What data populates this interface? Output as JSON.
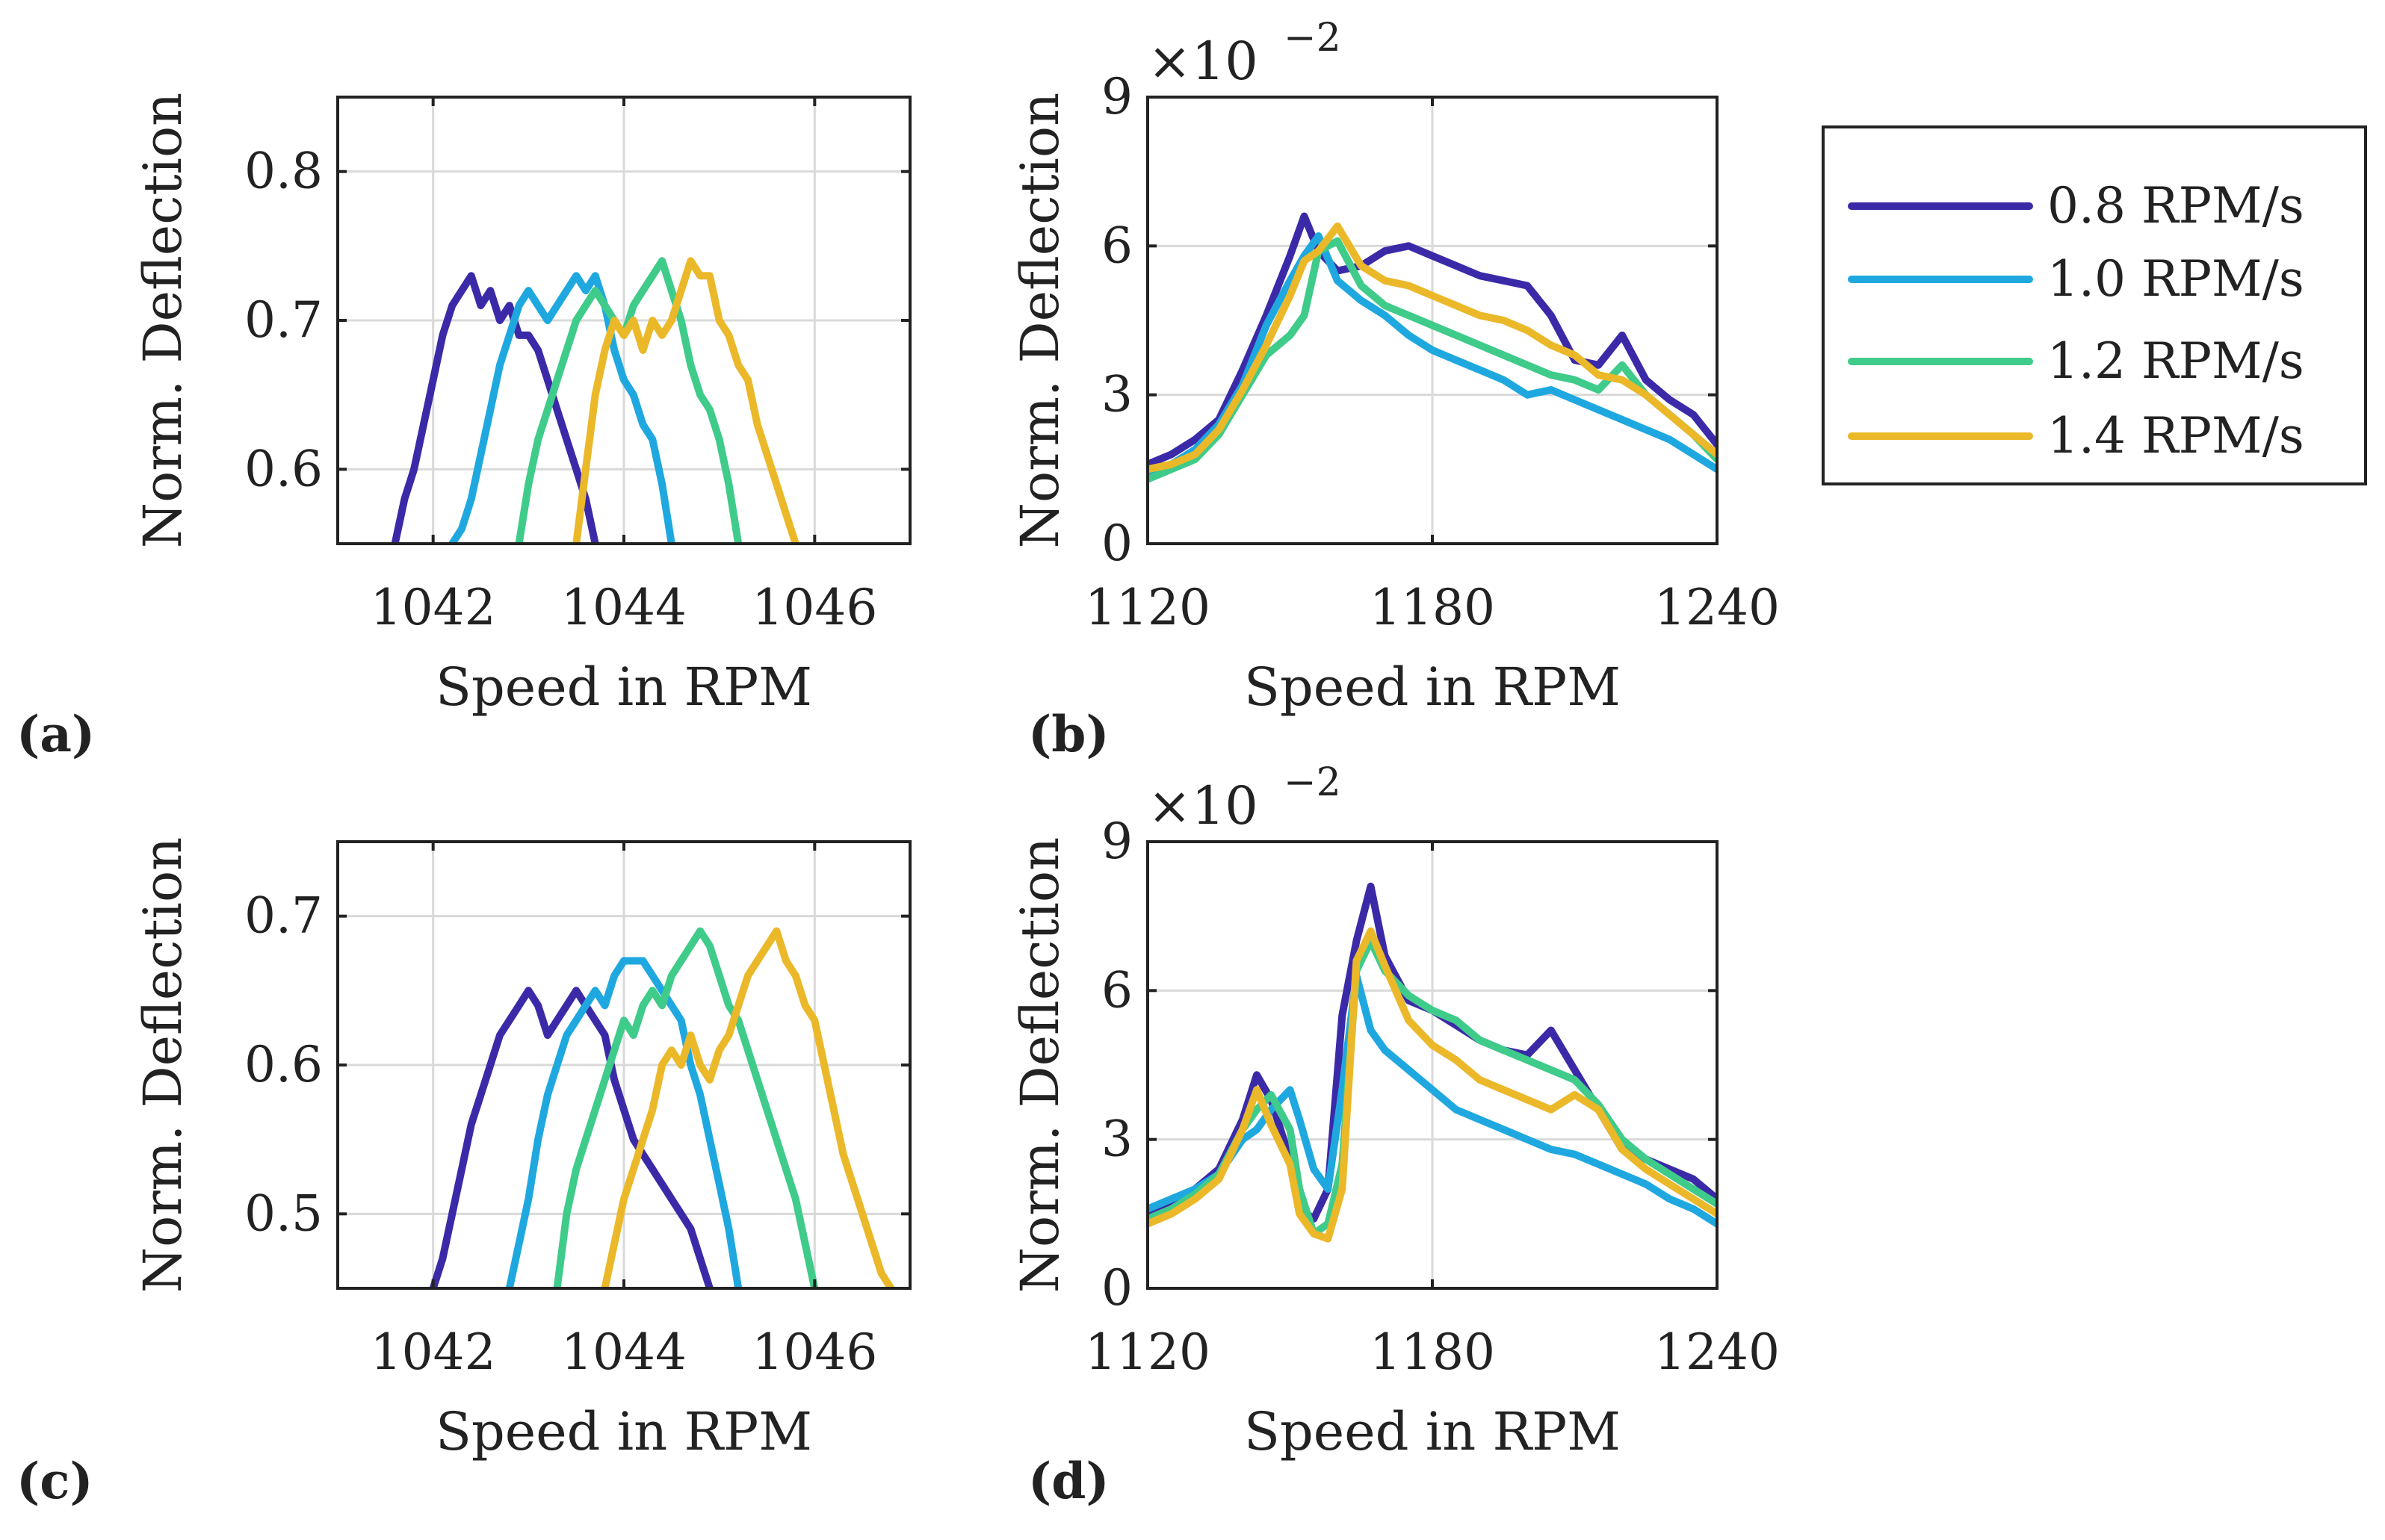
{
  "colors": {
    "s0": "#3b2aa8",
    "s1": "#1fa8df",
    "s2": "#3fcb8a",
    "s3": "#ebb829"
  },
  "legend": {
    "entries": [
      "0.8 RPM/s",
      "1.0 RPM/s",
      "1.2 RPM/s",
      "1.4 RPM/s"
    ]
  },
  "chart_data": [
    {
      "id": "a",
      "type": "line",
      "panel_label": "(a)",
      "xlabel": "Speed  in RPM",
      "ylabel": "Norm. Deflection",
      "xlim": [
        1041,
        1047
      ],
      "ylim": [
        0.55,
        0.85
      ],
      "xticks": [
        1042,
        1044,
        1046
      ],
      "xtick_labels": [
        "1042",
        "1044",
        "1046"
      ],
      "yticks": [
        0.6,
        0.7,
        0.8
      ],
      "ytick_labels": [
        "0.6",
        "0.7",
        "0.8"
      ],
      "series": [
        {
          "name": "0.8 RPM/s",
          "x": [
            1041.6,
            1041.7,
            1041.8,
            1041.9,
            1042.0,
            1042.1,
            1042.2,
            1042.3,
            1042.4,
            1042.5,
            1042.6,
            1042.7,
            1042.8,
            1042.9,
            1043.0,
            1043.1,
            1043.2,
            1043.3,
            1043.4,
            1043.5,
            1043.6,
            1043.7
          ],
          "y": [
            0.55,
            0.58,
            0.6,
            0.63,
            0.66,
            0.69,
            0.71,
            0.72,
            0.73,
            0.71,
            0.72,
            0.7,
            0.71,
            0.69,
            0.69,
            0.68,
            0.66,
            0.64,
            0.62,
            0.6,
            0.58,
            0.55
          ]
        },
        {
          "name": "1.0 RPM/s",
          "x": [
            1042.2,
            1042.3,
            1042.4,
            1042.5,
            1042.6,
            1042.7,
            1042.8,
            1042.9,
            1043.0,
            1043.1,
            1043.2,
            1043.3,
            1043.4,
            1043.5,
            1043.6,
            1043.7,
            1043.8,
            1043.9,
            1044.0,
            1044.1,
            1044.2,
            1044.3,
            1044.4,
            1044.5
          ],
          "y": [
            0.55,
            0.56,
            0.58,
            0.61,
            0.64,
            0.67,
            0.69,
            0.71,
            0.72,
            0.71,
            0.7,
            0.71,
            0.72,
            0.73,
            0.72,
            0.73,
            0.71,
            0.68,
            0.66,
            0.65,
            0.63,
            0.62,
            0.59,
            0.55
          ]
        },
        {
          "name": "1.2 RPM/s",
          "x": [
            1042.9,
            1043.0,
            1043.1,
            1043.2,
            1043.3,
            1043.4,
            1043.5,
            1043.6,
            1043.7,
            1043.8,
            1043.9,
            1044.0,
            1044.1,
            1044.2,
            1044.3,
            1044.4,
            1044.5,
            1044.6,
            1044.7,
            1044.8,
            1044.9,
            1045.0,
            1045.1,
            1045.2
          ],
          "y": [
            0.55,
            0.59,
            0.62,
            0.64,
            0.66,
            0.68,
            0.7,
            0.71,
            0.72,
            0.71,
            0.7,
            0.69,
            0.71,
            0.72,
            0.73,
            0.74,
            0.72,
            0.7,
            0.67,
            0.65,
            0.64,
            0.62,
            0.59,
            0.55
          ]
        },
        {
          "name": "1.4 RPM/s",
          "x": [
            1043.5,
            1043.6,
            1043.7,
            1043.8,
            1043.9,
            1044.0,
            1044.1,
            1044.2,
            1044.3,
            1044.4,
            1044.5,
            1044.6,
            1044.7,
            1044.8,
            1044.9,
            1045.0,
            1045.1,
            1045.2,
            1045.3,
            1045.4,
            1045.5,
            1045.6,
            1045.7,
            1045.8
          ],
          "y": [
            0.55,
            0.6,
            0.65,
            0.68,
            0.7,
            0.69,
            0.7,
            0.68,
            0.7,
            0.69,
            0.7,
            0.72,
            0.74,
            0.73,
            0.73,
            0.7,
            0.69,
            0.67,
            0.66,
            0.63,
            0.61,
            0.59,
            0.57,
            0.55
          ]
        }
      ]
    },
    {
      "id": "b",
      "type": "line",
      "panel_label": "(b)",
      "xlabel": "Speed  in RPM",
      "ylabel": "Norm. Deflection",
      "exponent_label": "×10",
      "exponent_power": "−2",
      "xlim": [
        1120,
        1240
      ],
      "ylim": [
        0,
        9
      ],
      "xticks": [
        1120,
        1180,
        1240
      ],
      "xtick_labels": [
        "1120",
        "1180",
        "1240"
      ],
      "yticks": [
        0,
        3,
        6,
        9
      ],
      "ytick_labels": [
        "0",
        "3",
        "6",
        "9"
      ],
      "series": [
        {
          "name": "0.8 RPM/s",
          "x": [
            1120,
            1125,
            1130,
            1135,
            1140,
            1145,
            1150,
            1153,
            1156,
            1160,
            1165,
            1170,
            1175,
            1180,
            1185,
            1190,
            1195,
            1200,
            1205,
            1210,
            1215,
            1220,
            1225,
            1230,
            1235,
            1240
          ],
          "y": [
            1.6,
            1.8,
            2.1,
            2.5,
            3.5,
            4.6,
            5.8,
            6.6,
            5.9,
            5.5,
            5.6,
            5.9,
            6.0,
            5.8,
            5.6,
            5.4,
            5.3,
            5.2,
            4.6,
            3.7,
            3.6,
            4.2,
            3.3,
            2.9,
            2.6,
            2.0
          ]
        },
        {
          "name": "1.0 RPM/s",
          "x": [
            1120,
            1125,
            1130,
            1135,
            1140,
            1145,
            1150,
            1153,
            1156,
            1160,
            1165,
            1170,
            1175,
            1180,
            1185,
            1190,
            1195,
            1200,
            1205,
            1210,
            1215,
            1220,
            1225,
            1230,
            1235,
            1240
          ],
          "y": [
            1.4,
            1.6,
            1.9,
            2.4,
            3.2,
            4.4,
            5.3,
            5.8,
            6.2,
            5.3,
            4.9,
            4.6,
            4.2,
            3.9,
            3.7,
            3.5,
            3.3,
            3.0,
            3.1,
            2.9,
            2.7,
            2.5,
            2.3,
            2.1,
            1.8,
            1.5
          ]
        },
        {
          "name": "1.2 RPM/s",
          "x": [
            1120,
            1125,
            1130,
            1135,
            1140,
            1145,
            1150,
            1153,
            1156,
            1160,
            1165,
            1170,
            1175,
            1180,
            1185,
            1190,
            1195,
            1200,
            1205,
            1210,
            1215,
            1220,
            1225,
            1230,
            1235,
            1240
          ],
          "y": [
            1.3,
            1.5,
            1.7,
            2.2,
            3.0,
            3.8,
            4.2,
            4.6,
            5.9,
            6.1,
            5.2,
            4.8,
            4.6,
            4.4,
            4.2,
            4.0,
            3.8,
            3.6,
            3.4,
            3.3,
            3.1,
            3.6,
            3.0,
            2.6,
            2.2,
            1.7
          ]
        },
        {
          "name": "1.4 RPM/s",
          "x": [
            1120,
            1125,
            1130,
            1135,
            1140,
            1145,
            1150,
            1153,
            1156,
            1160,
            1165,
            1170,
            1175,
            1180,
            1185,
            1190,
            1195,
            1200,
            1205,
            1210,
            1215,
            1220,
            1225,
            1230,
            1235,
            1240
          ],
          "y": [
            1.5,
            1.6,
            1.8,
            2.3,
            3.1,
            4.0,
            5.0,
            5.7,
            5.9,
            6.4,
            5.6,
            5.3,
            5.2,
            5.0,
            4.8,
            4.6,
            4.5,
            4.3,
            4.0,
            3.8,
            3.4,
            3.3,
            3.0,
            2.6,
            2.2,
            1.8
          ]
        }
      ]
    },
    {
      "id": "c",
      "type": "line",
      "panel_label": "(c)",
      "xlabel": "Speed  in RPM",
      "ylabel": "Norm. Deflection",
      "xlim": [
        1041,
        1047
      ],
      "ylim": [
        0.45,
        0.75
      ],
      "xticks": [
        1042,
        1044,
        1046
      ],
      "xtick_labels": [
        "1042",
        "1044",
        "1046"
      ],
      "yticks": [
        0.5,
        0.6,
        0.7
      ],
      "ytick_labels": [
        "0.5",
        "0.6",
        "0.7"
      ],
      "series": [
        {
          "name": "0.8 RPM/s",
          "x": [
            1042.0,
            1042.1,
            1042.2,
            1042.3,
            1042.4,
            1042.5,
            1042.6,
            1042.7,
            1042.8,
            1042.9,
            1043.0,
            1043.1,
            1043.2,
            1043.3,
            1043.4,
            1043.5,
            1043.6,
            1043.7,
            1043.8,
            1043.9,
            1044.0,
            1044.1,
            1044.2,
            1044.3,
            1044.4,
            1044.5,
            1044.6,
            1044.7,
            1044.8,
            1044.9
          ],
          "y": [
            0.45,
            0.47,
            0.5,
            0.53,
            0.56,
            0.58,
            0.6,
            0.62,
            0.63,
            0.64,
            0.65,
            0.64,
            0.62,
            0.63,
            0.64,
            0.65,
            0.64,
            0.63,
            0.62,
            0.59,
            0.57,
            0.55,
            0.54,
            0.53,
            0.52,
            0.51,
            0.5,
            0.49,
            0.47,
            0.45
          ]
        },
        {
          "name": "1.0 RPM/s",
          "x": [
            1042.8,
            1042.9,
            1043.0,
            1043.1,
            1043.2,
            1043.3,
            1043.4,
            1043.5,
            1043.6,
            1043.7,
            1043.8,
            1043.9,
            1044.0,
            1044.1,
            1044.2,
            1044.3,
            1044.4,
            1044.5,
            1044.6,
            1044.7,
            1044.8,
            1044.9,
            1045.0,
            1045.1,
            1045.2
          ],
          "y": [
            0.45,
            0.48,
            0.51,
            0.55,
            0.58,
            0.6,
            0.62,
            0.63,
            0.64,
            0.65,
            0.64,
            0.66,
            0.67,
            0.67,
            0.67,
            0.66,
            0.65,
            0.64,
            0.63,
            0.6,
            0.58,
            0.55,
            0.52,
            0.49,
            0.45
          ]
        },
        {
          "name": "1.2 RPM/s",
          "x": [
            1043.3,
            1043.4,
            1043.5,
            1043.6,
            1043.7,
            1043.8,
            1043.9,
            1044.0,
            1044.1,
            1044.2,
            1044.3,
            1044.4,
            1044.5,
            1044.6,
            1044.7,
            1044.8,
            1044.9,
            1045.0,
            1045.1,
            1045.2,
            1045.3,
            1045.4,
            1045.5,
            1045.6,
            1045.7,
            1045.8,
            1045.9,
            1046.0
          ],
          "y": [
            0.45,
            0.5,
            0.53,
            0.55,
            0.57,
            0.59,
            0.61,
            0.63,
            0.62,
            0.64,
            0.65,
            0.64,
            0.66,
            0.67,
            0.68,
            0.69,
            0.68,
            0.66,
            0.64,
            0.63,
            0.61,
            0.59,
            0.57,
            0.55,
            0.53,
            0.51,
            0.48,
            0.45
          ]
        },
        {
          "name": "1.4 RPM/s",
          "x": [
            1043.8,
            1043.9,
            1044.0,
            1044.1,
            1044.2,
            1044.3,
            1044.4,
            1044.5,
            1044.6,
            1044.7,
            1044.8,
            1044.9,
            1045.0,
            1045.1,
            1045.2,
            1045.3,
            1045.4,
            1045.5,
            1045.6,
            1045.7,
            1045.8,
            1045.9,
            1046.0,
            1046.1,
            1046.2,
            1046.3,
            1046.4,
            1046.5,
            1046.6,
            1046.7,
            1046.8
          ],
          "y": [
            0.45,
            0.48,
            0.51,
            0.53,
            0.55,
            0.57,
            0.6,
            0.61,
            0.6,
            0.62,
            0.6,
            0.59,
            0.61,
            0.62,
            0.64,
            0.66,
            0.67,
            0.68,
            0.69,
            0.67,
            0.66,
            0.64,
            0.63,
            0.6,
            0.57,
            0.54,
            0.52,
            0.5,
            0.48,
            0.46,
            0.45
          ]
        }
      ]
    },
    {
      "id": "d",
      "type": "line",
      "panel_label": "(d)",
      "xlabel": "Speed  in RPM",
      "ylabel": "Norm. Deflection",
      "exponent_label": "×10",
      "exponent_power": "−2",
      "xlim": [
        1120,
        1240
      ],
      "ylim": [
        0,
        9
      ],
      "xticks": [
        1120,
        1180,
        1240
      ],
      "xtick_labels": [
        "1120",
        "1180",
        "1240"
      ],
      "yticks": [
        0,
        3,
        6,
        9
      ],
      "ytick_labels": [
        "0",
        "3",
        "6",
        "9"
      ],
      "series": [
        {
          "name": "0.8 RPM/s",
          "x": [
            1120,
            1125,
            1130,
            1135,
            1140,
            1143,
            1146,
            1150,
            1152,
            1155,
            1158,
            1161,
            1164,
            1167,
            1170,
            1175,
            1180,
            1185,
            1190,
            1195,
            1200,
            1205,
            1210,
            1215,
            1220,
            1225,
            1230,
            1235,
            1240
          ],
          "y": [
            1.5,
            1.7,
            2.0,
            2.4,
            3.4,
            4.3,
            3.8,
            2.6,
            1.6,
            1.4,
            2.0,
            5.5,
            7.0,
            8.1,
            6.7,
            5.8,
            5.6,
            5.3,
            5.0,
            4.8,
            4.7,
            5.2,
            4.4,
            3.6,
            2.8,
            2.6,
            2.4,
            2.2,
            1.8
          ]
        },
        {
          "name": "1.0 RPM/s",
          "x": [
            1120,
            1125,
            1130,
            1135,
            1140,
            1143,
            1146,
            1150,
            1152,
            1155,
            1158,
            1161,
            1164,
            1167,
            1170,
            1175,
            1180,
            1185,
            1190,
            1195,
            1200,
            1205,
            1210,
            1215,
            1220,
            1225,
            1230,
            1235,
            1240
          ],
          "y": [
            1.6,
            1.8,
            2.0,
            2.3,
            3.0,
            3.2,
            3.6,
            4.0,
            3.4,
            2.4,
            2.0,
            4.0,
            6.3,
            5.2,
            4.8,
            4.4,
            4.0,
            3.6,
            3.4,
            3.2,
            3.0,
            2.8,
            2.7,
            2.5,
            2.3,
            2.1,
            1.8,
            1.6,
            1.3
          ]
        },
        {
          "name": "1.2 RPM/s",
          "x": [
            1120,
            1125,
            1130,
            1135,
            1140,
            1143,
            1146,
            1150,
            1152,
            1155,
            1158,
            1161,
            1164,
            1167,
            1170,
            1175,
            1180,
            1185,
            1190,
            1195,
            1200,
            1205,
            1210,
            1215,
            1220,
            1225,
            1230,
            1235,
            1240
          ],
          "y": [
            1.4,
            1.6,
            1.9,
            2.3,
            3.2,
            3.6,
            3.9,
            3.2,
            2.0,
            1.1,
            1.3,
            2.5,
            6.4,
            7.0,
            6.4,
            5.9,
            5.6,
            5.4,
            5.0,
            4.8,
            4.6,
            4.4,
            4.2,
            3.7,
            3.0,
            2.6,
            2.3,
            2.0,
            1.7
          ]
        },
        {
          "name": "1.4 RPM/s",
          "x": [
            1120,
            1125,
            1130,
            1135,
            1140,
            1143,
            1146,
            1150,
            1152,
            1155,
            1158,
            1161,
            1164,
            1167,
            1170,
            1175,
            1180,
            1185,
            1190,
            1195,
            1200,
            1205,
            1210,
            1215,
            1220,
            1225,
            1230,
            1235,
            1240
          ],
          "y": [
            1.3,
            1.5,
            1.8,
            2.2,
            3.2,
            4.0,
            3.3,
            2.5,
            1.5,
            1.1,
            1.0,
            2.0,
            6.6,
            7.2,
            6.5,
            5.4,
            4.9,
            4.6,
            4.2,
            4.0,
            3.8,
            3.6,
            3.9,
            3.6,
            2.8,
            2.4,
            2.1,
            1.8,
            1.5
          ]
        }
      ]
    }
  ]
}
